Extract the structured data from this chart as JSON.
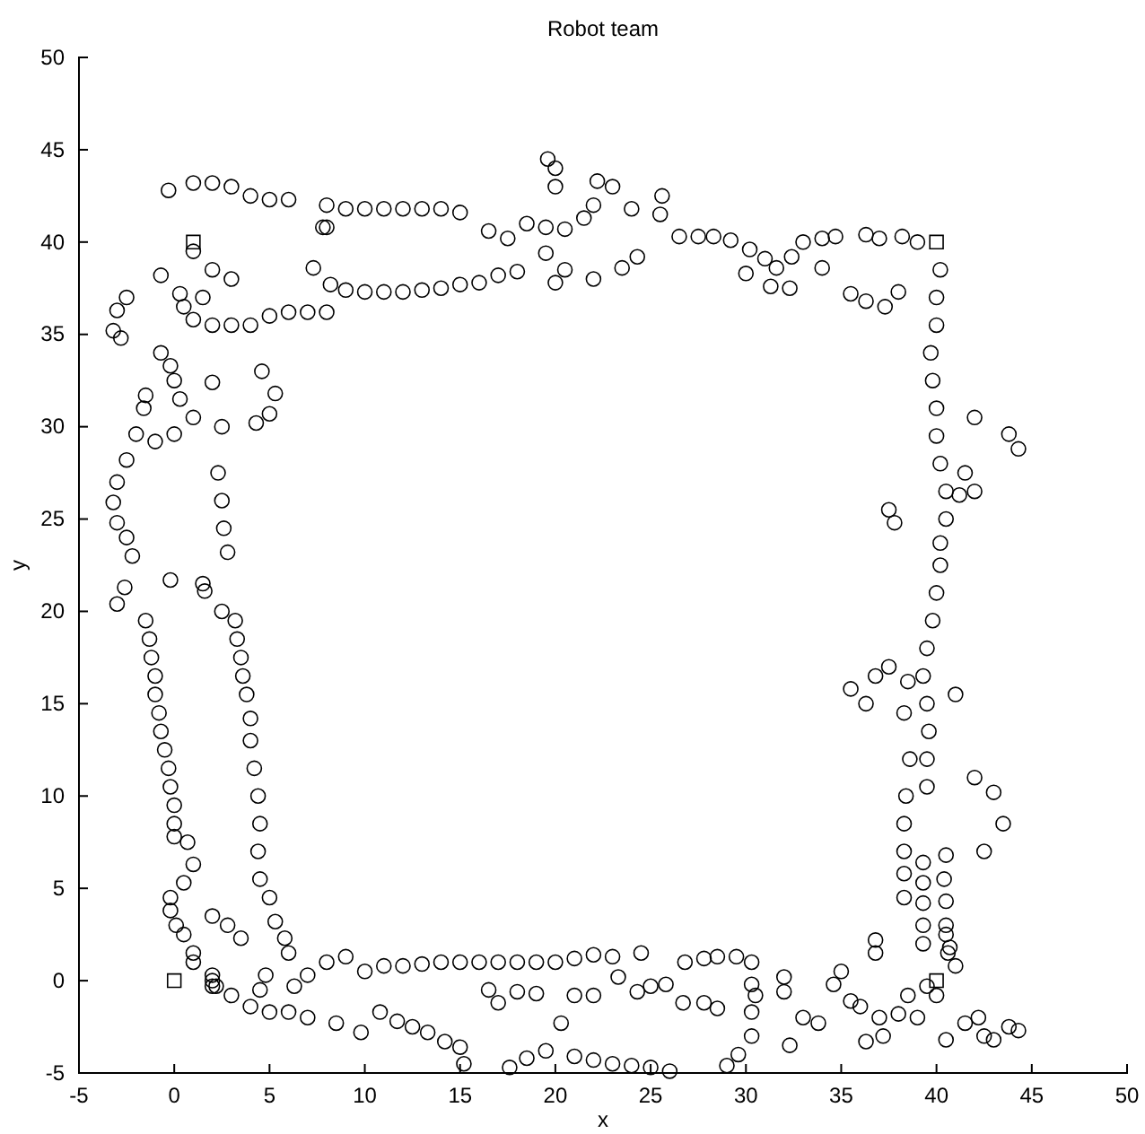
{
  "chart_data": {
    "type": "scatter",
    "title": "Robot team",
    "xlabel": "x",
    "ylabel": "y",
    "xlim": [
      -5,
      50
    ],
    "ylim": [
      -5,
      50
    ],
    "xticks": [
      -5,
      0,
      5,
      10,
      15,
      20,
      25,
      30,
      35,
      40,
      45,
      50
    ],
    "yticks": [
      -5,
      0,
      5,
      10,
      15,
      20,
      25,
      30,
      35,
      40,
      45,
      50
    ],
    "grid": false,
    "series": [
      {
        "color": "#000000",
        "marker": "circle",
        "x": [
          6.3,
          7,
          8,
          9,
          10,
          11,
          12,
          13,
          14,
          15,
          16,
          17,
          18,
          19,
          20,
          21,
          22,
          2,
          3,
          4,
          5,
          6,
          7,
          8.5,
          9.8,
          10.8,
          11.7,
          12.5,
          13.3,
          14.2,
          15,
          15.2,
          16.5,
          17,
          18,
          19,
          20.3,
          21,
          22,
          17.6,
          18.5,
          19.5,
          21,
          22,
          23,
          24,
          25,
          26,
          29,
          29.6,
          30.3,
          30.3,
          30.3,
          30.5,
          23,
          24.5,
          26.8,
          27.8,
          28.5,
          29.5,
          30.3,
          23.3,
          24.3,
          25,
          25.8,
          26.7,
          27.8,
          28.5,
          32,
          32,
          32.3,
          33,
          33.8,
          34.6,
          35,
          35.5,
          36,
          36.3,
          37,
          37.2,
          38,
          38.5,
          39,
          39.5,
          40,
          40.5,
          41.5,
          42.2,
          42.5,
          43,
          43.8,
          44.3,
          36.8,
          36.8,
          38.5,
          38.3,
          38.6,
          38.4,
          38.3,
          38.3,
          38.3,
          38.3,
          39.3,
          39.3,
          39.3,
          39.3,
          39.3,
          40.5,
          40.4,
          40.5,
          40.5,
          40.7,
          41,
          40.2,
          40,
          40,
          39.7,
          39.8,
          40,
          40,
          40.2,
          40.5,
          40.5,
          40.2,
          40.2,
          40,
          39.8,
          39.5,
          39.3,
          39.5,
          39.6,
          39.5,
          39.5,
          40.5,
          40.6,
          41,
          42,
          43,
          43.5,
          42.5,
          41.2,
          42,
          43.8,
          44.3,
          42,
          41.5,
          37.5,
          37.8,
          36.8,
          36.3,
          37.5,
          35.5,
          26.5,
          27.5,
          28.3,
          29.2,
          30.2,
          31,
          32.4,
          33,
          34,
          34.7,
          36.3,
          37,
          38.2,
          39,
          31.3,
          32.3,
          35.5,
          36.3,
          37.3,
          38,
          30,
          31.6,
          34,
          23.5,
          24.3,
          22,
          20,
          21.5,
          22,
          22.2,
          23,
          24,
          25.5,
          25.6,
          20,
          20,
          19.6,
          -0.3,
          1,
          2,
          3,
          4,
          5,
          6,
          8,
          9,
          10,
          11,
          12,
          13,
          14,
          15,
          16.5,
          17.5,
          18.5,
          19.5,
          20.5,
          8.2,
          9,
          10,
          11,
          12,
          13,
          14,
          15,
          16,
          17,
          18,
          19.5,
          20.5,
          0.5,
          1,
          2,
          3,
          4,
          5,
          6,
          7,
          8,
          7.3,
          7.8,
          8,
          -3,
          -2.5,
          -3.2,
          -2.8,
          -0.7,
          -0.2,
          0,
          0.3,
          1,
          2.5,
          4.3,
          5,
          5.3,
          4.6,
          2,
          -1.5,
          -1.6,
          -2,
          -1,
          0,
          -2.5,
          -3,
          -3.2,
          -3,
          -2.5,
          -2.2,
          -2.6,
          -3,
          -0.2,
          1.5,
          1.6,
          2.5,
          2.3,
          2.5,
          2.6,
          2.8,
          1,
          2,
          1.5,
          3,
          -0.7,
          0.3,
          -1.5,
          -1.3,
          -1.2,
          -1,
          -1,
          -0.8,
          -0.7,
          -0.5,
          -0.3,
          -0.2,
          0,
          0,
          0,
          0.7,
          1,
          0.5,
          -0.2,
          -0.2,
          0.1,
          0.5,
          1,
          1,
          2,
          2,
          2.2,
          3.2,
          3.3,
          3.5,
          3.6,
          3.8,
          4,
          4,
          4.2,
          4.4,
          4.5,
          4.4,
          4.5,
          5,
          5.3,
          5.8,
          6,
          4.8,
          4.5,
          3.5,
          2.8,
          2
        ],
        "values": [
          -0.3,
          0.3,
          1,
          1.3,
          0.5,
          0.8,
          0.8,
          0.9,
          1,
          1,
          1,
          1,
          1,
          1,
          1,
          1.2,
          1.4,
          -0.3,
          -0.8,
          -1.4,
          -1.7,
          -1.7,
          -2,
          -2.3,
          -2.8,
          -1.7,
          -2.2,
          -2.5,
          -2.8,
          -3.3,
          -3.6,
          -4.5,
          -0.5,
          -1.2,
          -0.6,
          -0.7,
          -2.3,
          -0.8,
          -0.8,
          -4.7,
          -4.2,
          -3.8,
          -4.1,
          -4.3,
          -4.5,
          -4.6,
          -4.7,
          -4.9,
          -4.6,
          -4,
          -3,
          -1.7,
          -0.2,
          -0.8,
          1.3,
          1.5,
          1,
          1.2,
          1.3,
          1.3,
          1,
          0.2,
          -0.6,
          -0.3,
          -0.2,
          -1.2,
          -1.2,
          -1.5,
          0.2,
          -0.6,
          -3.5,
          -2,
          -2.3,
          -0.2,
          0.5,
          -1.1,
          -1.4,
          -3.3,
          -2,
          -3,
          -1.8,
          -0.8,
          -2,
          -0.3,
          -0.8,
          -3.2,
          -2.3,
          -2,
          -3,
          -3.2,
          -2.5,
          -2.7,
          2.2,
          1.5,
          16.2,
          14.5,
          12,
          10,
          8.5,
          7,
          5.8,
          4.5,
          6.4,
          5.3,
          4.2,
          3,
          2,
          6.8,
          5.5,
          4.3,
          3,
          1.8,
          0.8,
          38.5,
          37,
          35.5,
          34,
          32.5,
          31,
          29.5,
          28,
          26.5,
          25,
          23.7,
          22.5,
          21,
          19.5,
          18,
          16.5,
          15,
          13.5,
          12,
          10.5,
          2.5,
          1.5,
          15.5,
          11,
          10.2,
          8.5,
          7,
          26.3,
          26.5,
          29.6,
          28.8,
          30.5,
          27.5,
          25.5,
          24.8,
          16.5,
          15,
          17,
          15.8,
          40.3,
          40.3,
          40.3,
          40.1,
          39.6,
          39.1,
          39.2,
          40,
          40.2,
          40.3,
          40.4,
          40.2,
          40.3,
          40,
          37.6,
          37.5,
          37.2,
          36.8,
          36.5,
          37.3,
          38.3,
          38.6,
          38.6,
          38.6,
          39.2,
          38,
          37.8,
          41.3,
          42,
          43.3,
          43,
          41.8,
          41.5,
          42.5,
          43,
          44,
          44.5,
          42.8,
          43.2,
          43.2,
          43,
          42.5,
          42.3,
          42.3,
          42,
          41.8,
          41.8,
          41.8,
          41.8,
          41.8,
          41.8,
          41.6,
          40.6,
          40.2,
          41,
          40.8,
          40.7,
          37.7,
          37.4,
          37.3,
          37.3,
          37.3,
          37.4,
          37.5,
          37.7,
          37.8,
          38.2,
          38.4,
          39.4,
          38.5,
          36.5,
          35.8,
          35.5,
          35.5,
          35.5,
          36,
          36.2,
          36.2,
          36.2,
          38.6,
          40.8,
          40.8,
          36.3,
          37,
          35.2,
          34.8,
          34,
          33.3,
          32.5,
          31.5,
          30.5,
          30,
          30.2,
          30.7,
          31.8,
          33,
          32.4,
          31.7,
          31,
          29.6,
          29.2,
          29.6,
          28.2,
          27,
          25.9,
          24.8,
          24,
          23,
          21.3,
          20.4,
          21.7,
          21.5,
          21.1,
          20,
          27.5,
          26,
          24.5,
          23.2,
          39.5,
          38.5,
          37,
          38,
          38.2,
          37.2,
          19.5,
          18.5,
          17.5,
          16.5,
          15.5,
          14.5,
          13.5,
          12.5,
          11.5,
          10.5,
          9.5,
          8.5,
          7.8,
          7.5,
          6.3,
          5.3,
          4.5,
          3.8,
          3,
          2.5,
          1.5,
          1,
          0.3,
          0,
          -0.3,
          19.5,
          18.5,
          17.5,
          16.5,
          15.5,
          14.2,
          13,
          11.5,
          10,
          8.5,
          7,
          5.5,
          4.5,
          3.2,
          2.3,
          1.5,
          0.3,
          -0.5,
          2.3,
          3,
          3.5
        ]
      },
      {
        "color": "#000000",
        "marker": "square",
        "x": [
          0,
          1,
          40,
          40
        ],
        "values": [
          0,
          40,
          40,
          0
        ]
      }
    ]
  }
}
